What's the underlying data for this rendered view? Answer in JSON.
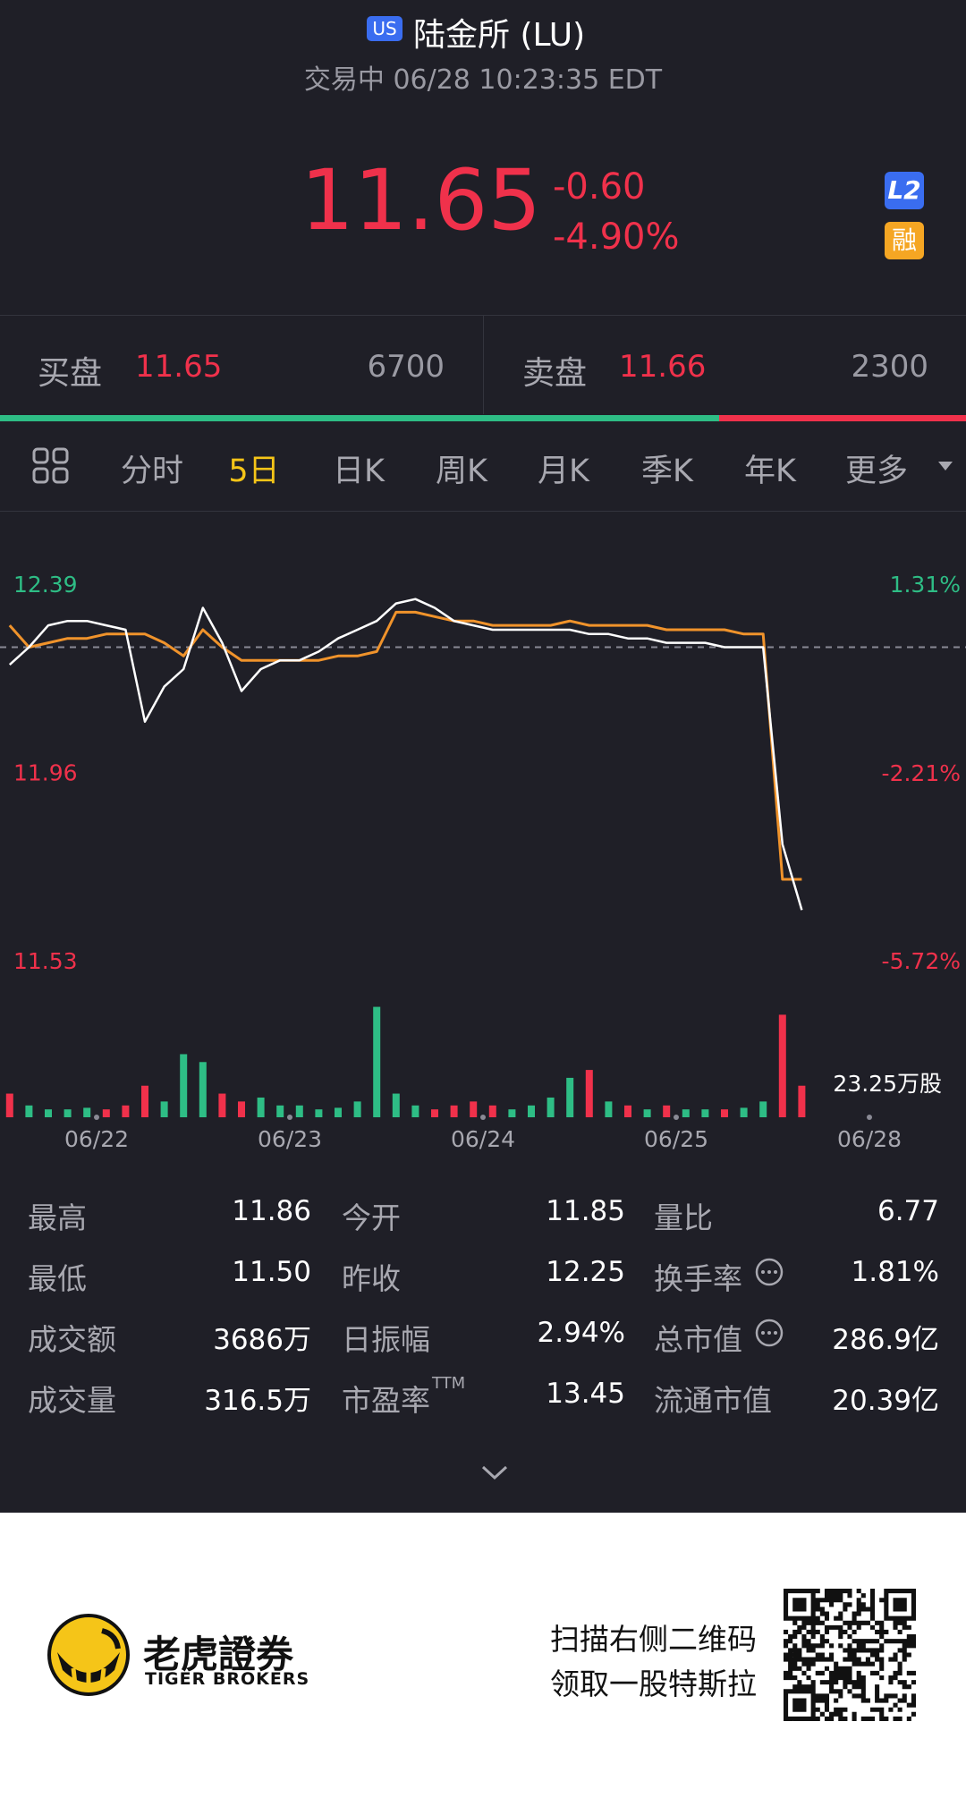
{
  "header": {
    "market_badge": "US",
    "title": "陆金所 (LU)",
    "status": "交易中 06/28 10:23:35 EDT"
  },
  "quote": {
    "price": "11.65",
    "change": "-0.60",
    "change_pct": "-4.90%",
    "badge_l2": "L2",
    "badge_margin": "融"
  },
  "order_book": {
    "bid_label": "买盘",
    "bid_price": "11.65",
    "bid_size": 6700,
    "ask_label": "卖盘",
    "ask_price": "11.66",
    "ask_size": 2300,
    "bid_color": "#2ebd85",
    "ask_color": "#f0314b"
  },
  "tabs": {
    "items": [
      "分时",
      "5日",
      "日K",
      "周K",
      "月K",
      "季K",
      "年K",
      "更多"
    ],
    "active": 1
  },
  "chart_data": {
    "type": "line",
    "series": [
      {
        "color": "#ffffff",
        "values": [
          12.21,
          12.25,
          12.3,
          12.31,
          12.31,
          12.3,
          12.29,
          12.08,
          12.16,
          12.2,
          12.34,
          12.26,
          12.15,
          12.2,
          12.22,
          12.22,
          12.24,
          12.27,
          12.29,
          12.31,
          12.35,
          12.36,
          12.34,
          12.31,
          12.3,
          12.29,
          12.29,
          12.29,
          12.29,
          12.29,
          12.28,
          12.28,
          12.27,
          12.27,
          12.26,
          12.26,
          12.26,
          12.25,
          12.25,
          12.25,
          11.8,
          11.65
        ]
      },
      {
        "color": "#f0932b",
        "values": [
          12.3,
          12.25,
          12.26,
          12.27,
          12.27,
          12.28,
          12.28,
          12.28,
          12.26,
          12.23,
          12.29,
          12.25,
          12.22,
          12.22,
          12.22,
          12.22,
          12.22,
          12.23,
          12.23,
          12.24,
          12.33,
          12.33,
          12.32,
          12.31,
          12.31,
          12.3,
          12.3,
          12.3,
          12.3,
          12.31,
          12.3,
          12.3,
          12.3,
          12.3,
          12.29,
          12.29,
          12.29,
          12.29,
          12.28,
          12.28,
          11.72,
          11.72
        ]
      }
    ],
    "xlim": [
      0,
      50
    ],
    "xticks": [
      {
        "value": 5,
        "label": "06/22"
      },
      {
        "value": 15,
        "label": "06/23"
      },
      {
        "value": 25,
        "label": "06/24"
      },
      {
        "value": 35,
        "label": "06/25"
      },
      {
        "value": 45,
        "label": "06/28"
      }
    ],
    "ylim": [
      11.53,
      12.39
    ],
    "yticks": [
      12.39,
      11.96,
      11.53
    ],
    "y2lim": [
      -5.72,
      1.31
    ],
    "y2ticks": [
      {
        "value": 1.31,
        "label": "1.31%"
      },
      {
        "value": -2.21,
        "label": "-2.21%"
      },
      {
        "value": -5.72,
        "label": "-5.72%"
      }
    ],
    "reference_line": 12.25,
    "up_color": "#2ebd85",
    "down_color": "#f0314b",
    "volume": {
      "values": [
        3,
        1.5,
        1,
        1,
        1.2,
        1,
        1.5,
        4,
        2,
        8,
        7,
        3,
        2,
        2.5,
        1.5,
        1.5,
        1,
        1.2,
        2,
        14,
        3,
        1.5,
        1,
        1.5,
        2,
        1.5,
        1,
        1.5,
        2.5,
        5,
        6,
        2,
        1.5,
        1,
        1.5,
        1,
        1,
        1,
        1.2,
        2,
        13,
        4
      ],
      "max": {
        "value": 23.25,
        "label": "23.25万股"
      }
    }
  },
  "stats": {
    "rows": [
      [
        "最高",
        "11.86",
        "今开",
        "11.85",
        "量比",
        "6.77"
      ],
      [
        "最低",
        "11.50",
        "昨收",
        "12.25",
        "换手率",
        "1.81%"
      ],
      [
        "成交额",
        "3686万",
        "日振幅",
        "2.94%",
        "总市值",
        "286.9亿"
      ],
      [
        "成交量",
        "316.5万",
        "市盈率",
        "13.45",
        "流通市值",
        "20.39亿"
      ]
    ],
    "pe_suffix": "TTM"
  },
  "footer": {
    "brand_cn": "老虎證券",
    "brand_en": "TIGER BROKERS",
    "promo": [
      "扫描右侧二维码",
      "领取一股特斯拉"
    ]
  }
}
